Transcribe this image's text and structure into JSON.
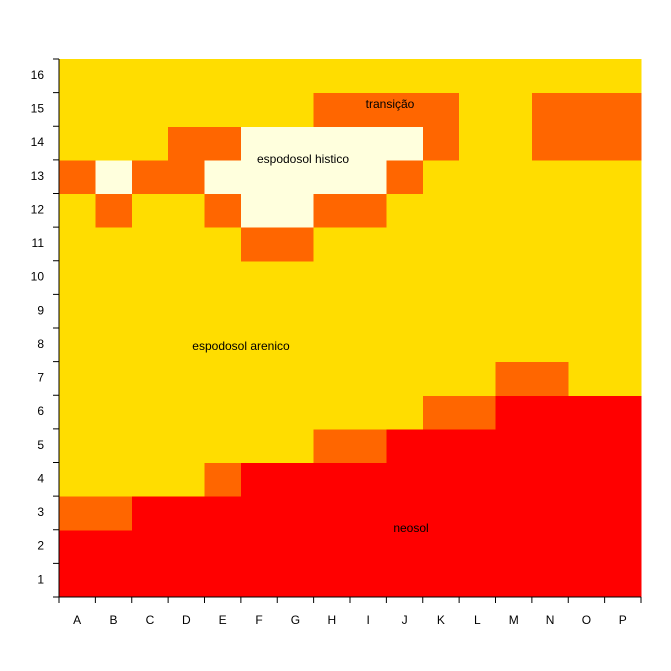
{
  "chart_data": {
    "type": "heatmap",
    "x": [
      "A",
      "B",
      "C",
      "D",
      "E",
      "F",
      "G",
      "H",
      "I",
      "J",
      "K",
      "L",
      "M",
      "N",
      "O",
      "P"
    ],
    "y": [
      1,
      2,
      3,
      4,
      5,
      6,
      7,
      8,
      9,
      10,
      11,
      12,
      13,
      14,
      15,
      16
    ],
    "colors": [
      "#ff0000",
      "#ff6600",
      "#ffdd00",
      "#ffffdd"
    ],
    "values": [
      [
        1,
        1,
        1,
        1,
        1,
        1,
        1,
        1,
        1,
        1,
        1,
        1,
        1,
        1,
        1,
        1
      ],
      [
        1,
        1,
        1,
        1,
        1,
        1,
        1,
        1,
        1,
        1,
        1,
        1,
        1,
        1,
        1,
        1
      ],
      [
        2,
        2,
        1,
        1,
        1,
        1,
        1,
        1,
        1,
        1,
        1,
        1,
        1,
        1,
        1,
        1
      ],
      [
        3,
        3,
        3,
        3,
        2,
        1,
        1,
        1,
        1,
        1,
        1,
        1,
        1,
        1,
        1,
        1
      ],
      [
        3,
        3,
        3,
        3,
        3,
        3,
        3,
        2,
        2,
        1,
        1,
        1,
        1,
        1,
        1,
        1
      ],
      [
        3,
        3,
        3,
        3,
        3,
        3,
        3,
        3,
        3,
        3,
        2,
        2,
        1,
        1,
        1,
        1
      ],
      [
        3,
        3,
        3,
        3,
        3,
        3,
        3,
        3,
        3,
        3,
        3,
        3,
        2,
        2,
        3,
        3
      ],
      [
        3,
        3,
        3,
        3,
        3,
        3,
        3,
        3,
        3,
        3,
        3,
        3,
        3,
        3,
        3,
        3
      ],
      [
        3,
        3,
        3,
        3,
        3,
        3,
        3,
        3,
        3,
        3,
        3,
        3,
        3,
        3,
        3,
        3
      ],
      [
        3,
        3,
        3,
        3,
        3,
        3,
        3,
        3,
        3,
        3,
        3,
        3,
        3,
        3,
        3,
        3
      ],
      [
        3,
        3,
        3,
        3,
        3,
        2,
        2,
        3,
        3,
        3,
        3,
        3,
        3,
        3,
        3,
        3
      ],
      [
        3,
        2,
        3,
        3,
        2,
        4,
        4,
        2,
        2,
        3,
        3,
        3,
        3,
        3,
        3,
        3
      ],
      [
        2,
        4,
        2,
        2,
        4,
        4,
        4,
        4,
        4,
        2,
        3,
        3,
        3,
        3,
        3,
        3
      ],
      [
        3,
        3,
        3,
        2,
        2,
        4,
        4,
        4,
        4,
        4,
        2,
        3,
        3,
        2,
        2,
        2
      ],
      [
        3,
        3,
        3,
        3,
        3,
        3,
        3,
        2,
        2,
        2,
        2,
        3,
        3,
        2,
        2,
        2
      ],
      [
        3,
        3,
        3,
        3,
        3,
        3,
        3,
        3,
        3,
        3,
        3,
        3,
        3,
        3,
        3,
        3
      ]
    ],
    "annotations": [
      "transição",
      "espodosol histico",
      "espodosol arenico",
      "neosol"
    ]
  }
}
